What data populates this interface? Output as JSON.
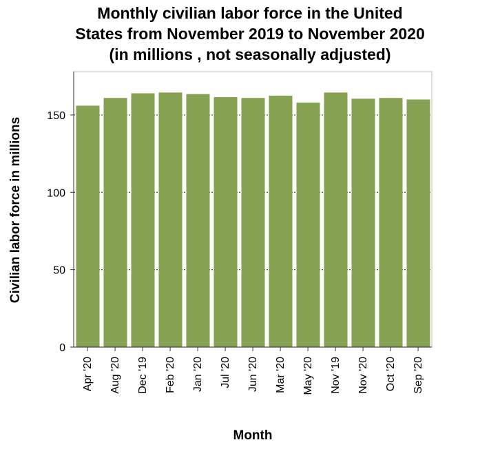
{
  "chart_data": {
    "type": "bar",
    "title_lines": [
      "Monthly civilian labor force in the United",
      "States from November 2019 to November 2020",
      "(in millions , not seasonally adjusted)"
    ],
    "xlabel": "Month",
    "ylabel": "Civilian labor force in millions",
    "categories": [
      "Apr '20",
      "Aug '20",
      "Dec '19",
      "Feb '20",
      "Jan '20",
      "Jul '20",
      "Jun '20",
      "Mar '20",
      "May '20",
      "Nov '19",
      "Nov '20",
      "Oct '20",
      "Sep '20"
    ],
    "values": [
      156,
      161,
      164,
      164.5,
      163.5,
      161.5,
      161,
      162.5,
      158,
      164.5,
      160.5,
      161,
      160
    ],
    "ylim": [
      0,
      178
    ],
    "yticks": [
      0,
      50,
      100,
      150
    ],
    "grid": true,
    "bar_color": "#88a253"
  }
}
